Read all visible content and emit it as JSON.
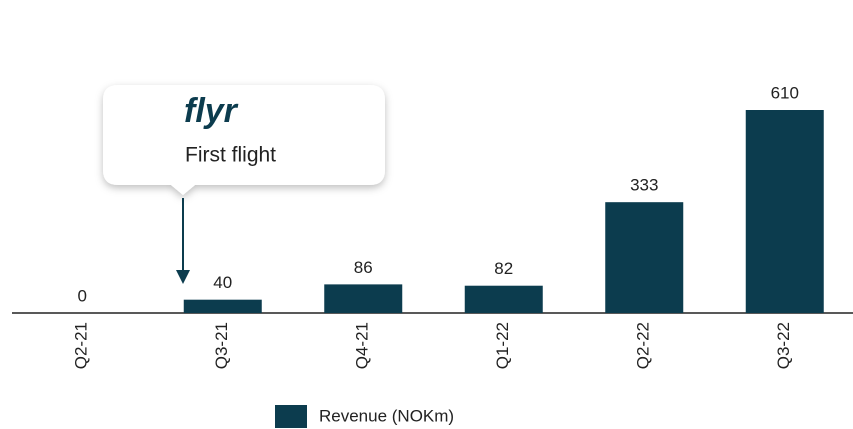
{
  "chart_data": {
    "type": "bar",
    "categories": [
      "Q2-21",
      "Q3-21",
      "Q4-21",
      "Q1-22",
      "Q2-22",
      "Q3-22"
    ],
    "series": [
      {
        "name": "Revenue (NOKm)",
        "color": "#0c3c4e",
        "values": [
          0,
          40,
          86,
          82,
          333,
          610
        ]
      }
    ],
    "annotation": {
      "logo": "flyr",
      "text": "First flight"
    }
  }
}
